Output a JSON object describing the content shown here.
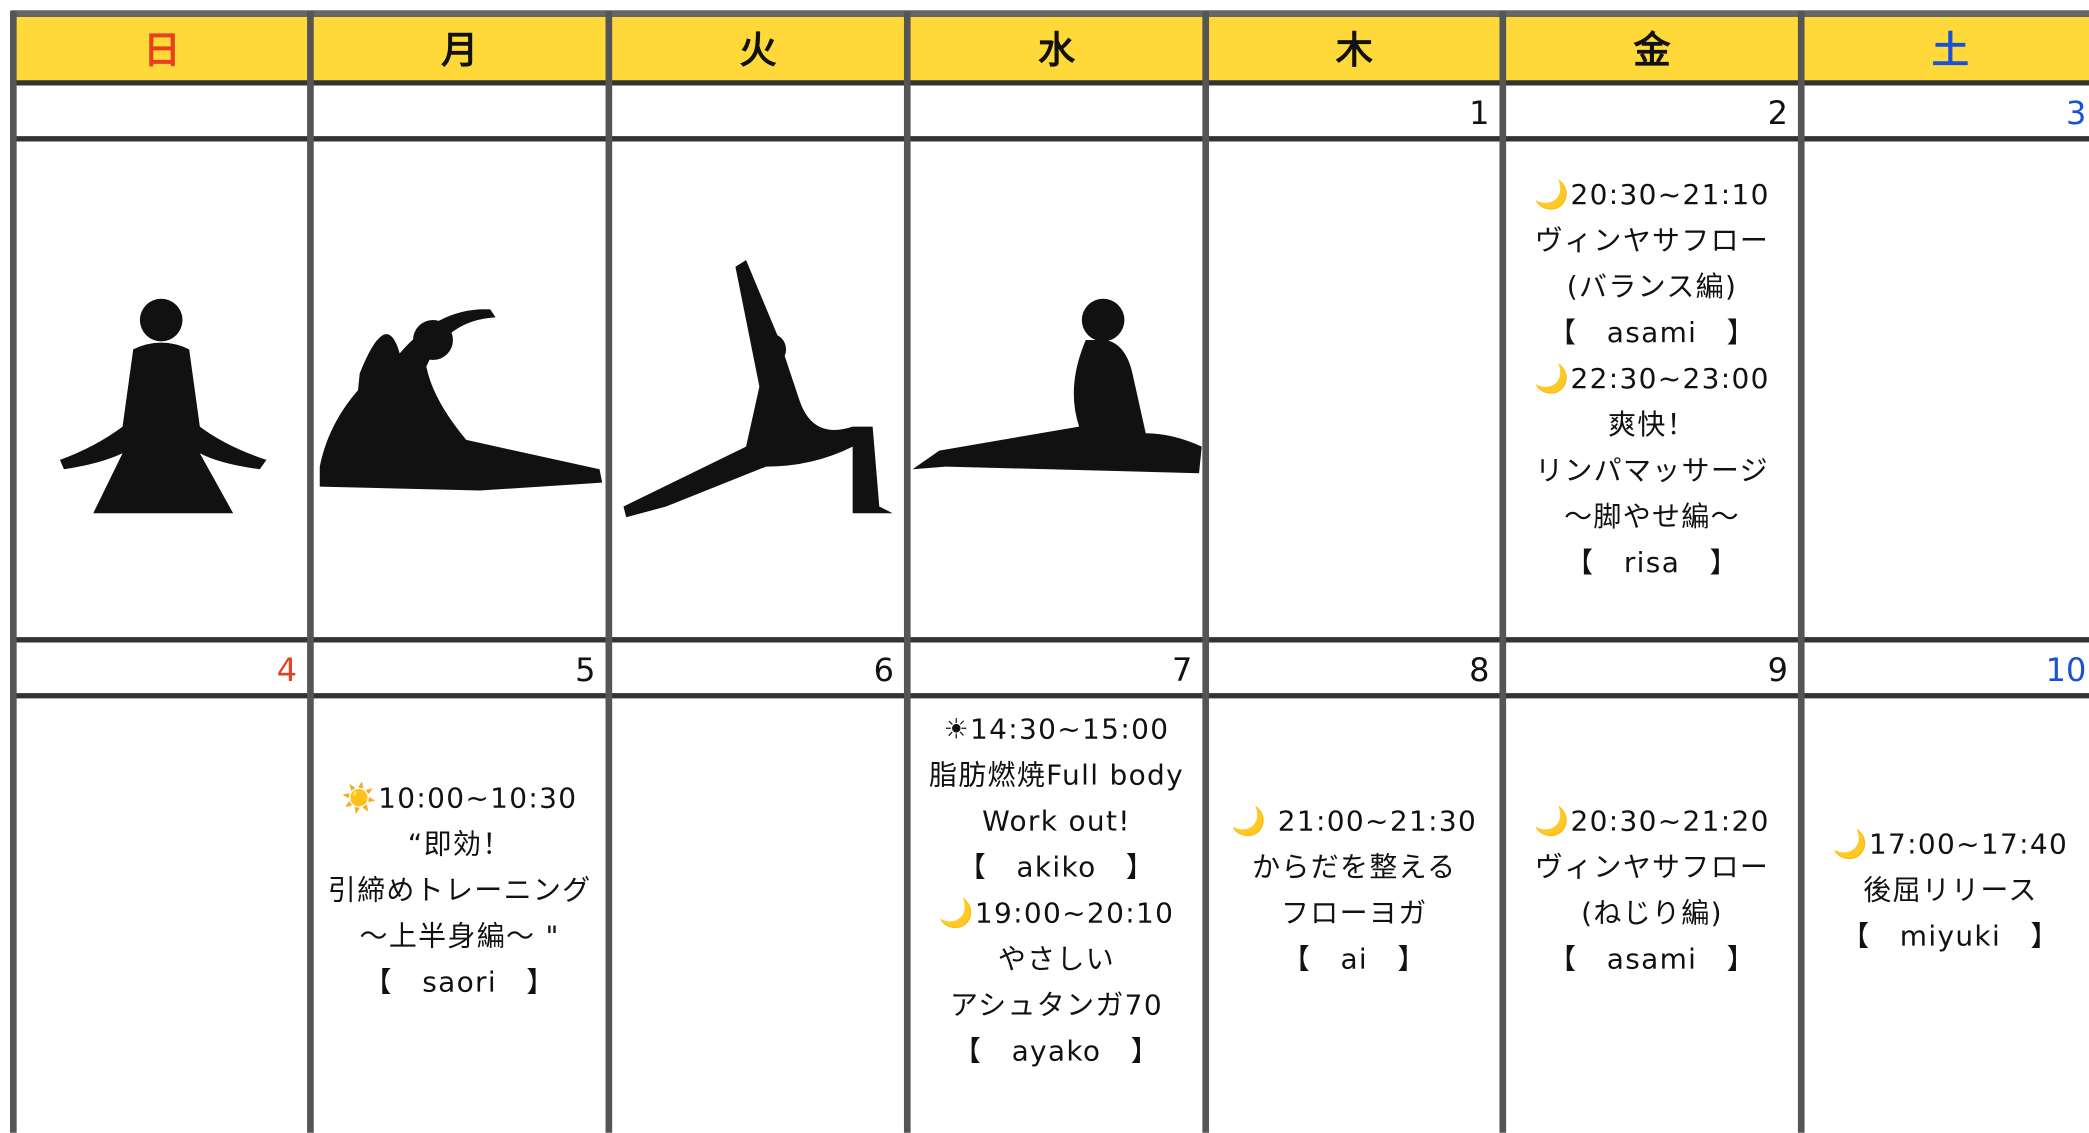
{
  "calendar": {
    "weekdays": [
      "日",
      "月",
      "火",
      "水",
      "木",
      "金",
      "土"
    ],
    "weeks": [
      {
        "dates": [
          null,
          null,
          null,
          null,
          "1",
          "2",
          "3"
        ],
        "cells": [
          [],
          [],
          [],
          [],
          [],
          [
            "🌙20:30~21:10",
            "ヴィンヤサフロー",
            "(バランス編)",
            "【　asami　】",
            "🌙22:30~23:00",
            "爽快！",
            "リンパマッサージ",
            "～脚やせ編～",
            "【　risa　】"
          ],
          []
        ]
      },
      {
        "dates": [
          "4",
          "5",
          "6",
          "7",
          "8",
          "9",
          "10"
        ],
        "cells": [
          [],
          [
            "☀️10:00~10:30",
            "“即効！",
            "引締めトレーニング",
            "～上半身編～ \"",
            "【　saori　】"
          ],
          [],
          [
            "☀14:30~15:00",
            "脂肪燃焼Full body",
            "Work out!",
            "【　akiko　】",
            "🌙19:00~20:10",
            "やさしい",
            "アシュタンガ70",
            "【　ayako　】"
          ],
          [
            "🌙 21:00~21:30",
            "からだを整える",
            "フローヨガ",
            "【　ai　】"
          ],
          [
            "🌙20:30~21:20",
            "ヴィンヤサフロー",
            "(ねじり編)",
            "【　asami　】"
          ],
          [
            "🌙17:00~17:40",
            "後屈リリース",
            "【　miyuki　】"
          ]
        ]
      }
    ]
  }
}
